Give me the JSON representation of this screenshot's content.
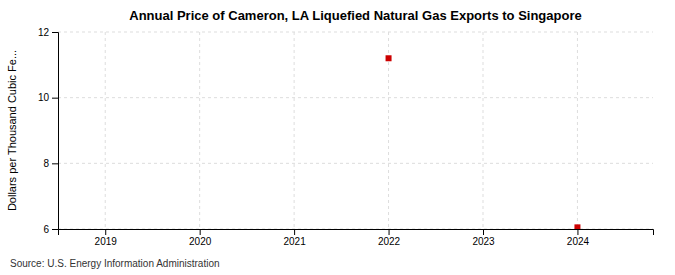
{
  "chart_data": {
    "type": "scatter",
    "title": "Annual Price of Cameron, LA Liquefied Natural Gas Exports to Singapore",
    "ylabel": "Dollars per Thousand Cubic Fe...",
    "annotations": [
      "Source: U.S. Energy Information Administration"
    ],
    "x": [
      2022,
      2024
    ],
    "values": [
      11.2,
      6.05
    ],
    "color": "#cc0000",
    "marker": "square",
    "xlim": [
      2018.5,
      2024.8
    ],
    "ylim": [
      6,
      12
    ],
    "xticks": [
      2019,
      2020,
      2021,
      2022,
      2023,
      2024
    ],
    "yticks": [
      6,
      8,
      10,
      12
    ],
    "grid": true
  }
}
